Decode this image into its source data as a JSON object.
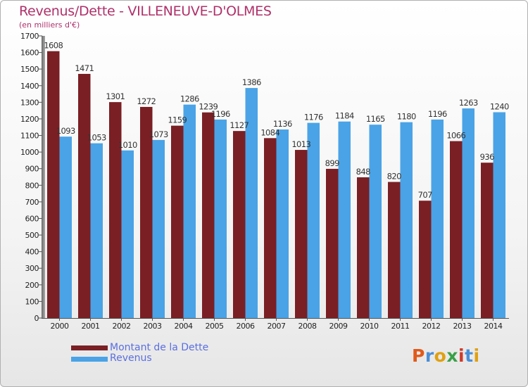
{
  "chart_data": {
    "type": "bar",
    "title": "Revenus/Dette - VILLENEUVE-D'OLMES",
    "subtitle": "(en milliers d'€)",
    "categories": [
      "2000",
      "2001",
      "2002",
      "2003",
      "2004",
      "2005",
      "2006",
      "2007",
      "2008",
      "2009",
      "2010",
      "2011",
      "2012",
      "2013",
      "2014"
    ],
    "series": [
      {
        "name": "Montant de la Dette",
        "color": "#7a1f24",
        "values": [
          1608,
          1471,
          1301,
          1272,
          1159,
          1239,
          1127,
          1084,
          1013,
          899,
          848,
          820,
          707,
          1066,
          936
        ],
        "labels": [
          "1608",
          "1471",
          "1301",
          "1272",
          "1159",
          "1239",
          "1127",
          "1084",
          "1013",
          "899",
          "848",
          "820",
          "707",
          "1066",
          "936"
        ]
      },
      {
        "name": "Revenus",
        "color": "#4aa3e6",
        "values": [
          1093,
          1053,
          1010,
          1073,
          1286,
          1196,
          1386,
          1136,
          1176,
          1184,
          1165,
          1180,
          1196,
          1263,
          1240
        ],
        "labels": [
          "1093",
          "1053",
          "1010",
          "1073",
          "1286",
          "1196",
          "1386",
          "1136",
          "1176",
          "1184",
          "1165",
          "1180",
          "1196",
          "1263",
          "1240"
        ]
      }
    ],
    "ylim": [
      0,
      1700
    ],
    "yticks": [
      0,
      100,
      200,
      300,
      400,
      500,
      600,
      700,
      800,
      900,
      1000,
      1100,
      1200,
      1300,
      1400,
      1500,
      1600,
      1700
    ],
    "grid": false,
    "legend_position": "bottom-left"
  },
  "logo": {
    "letters": [
      "P",
      "r",
      "o",
      "x",
      "i",
      "t",
      "i"
    ],
    "colors": [
      "#e05a1a",
      "#4a8fd8",
      "#e0a010",
      "#3aa048",
      "#d03a2a",
      "#4a8fd8",
      "#e0a010"
    ]
  }
}
